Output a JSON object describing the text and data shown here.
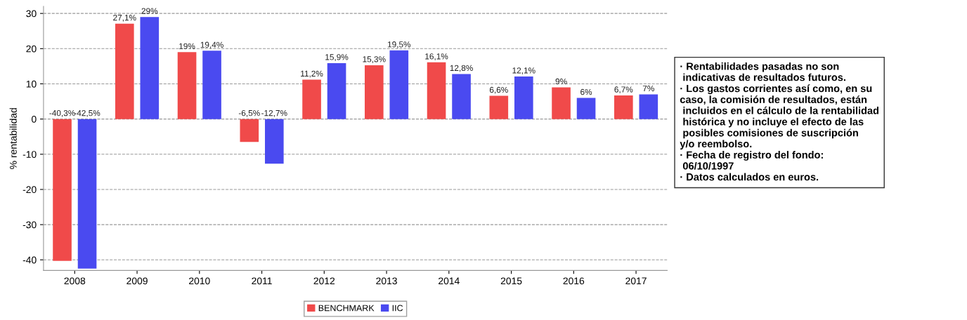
{
  "chart_data": {
    "type": "bar",
    "ylabel": "% rentabilidad",
    "categories": [
      "2008",
      "2009",
      "2010",
      "2011",
      "2012",
      "2013",
      "2014",
      "2015",
      "2016",
      "2017"
    ],
    "series": [
      {
        "name": "BENCHMARK",
        "color": "#f04a4a",
        "values": [
          -40.3,
          27.1,
          19,
          -6.5,
          11.2,
          15.3,
          16.1,
          6.6,
          9,
          6.7
        ],
        "value_labels": [
          "-40,3%",
          "27,1%",
          "19%",
          "-6,5%",
          "11,2%",
          "15,3%",
          "16,1%",
          "6,6%",
          "9%",
          "6,7%"
        ]
      },
      {
        "name": "IIC",
        "color": "#4a4af0",
        "values": [
          -42.5,
          29,
          19.4,
          -12.7,
          15.9,
          19.5,
          12.8,
          12.1,
          6,
          7
        ],
        "value_labels": [
          "-42,5%",
          "29%",
          "19,4%",
          "-12,7%",
          "15,9%",
          "19,5%",
          "12,8%",
          "12,1%",
          "6%",
          "7%"
        ]
      }
    ],
    "ylim": [
      -43,
      32
    ],
    "yticks": [
      -40,
      -30,
      -20,
      -10,
      0,
      10,
      20,
      30
    ],
    "grid": "y",
    "legend": "bottom",
    "annotations": [
      "· Rentabilidades pasadas no son\n indicativas de resultados futuros.\n· Los gastos corrientes así como, en su\ncaso, la comisión de resultados, están\n incluidos en el cálculo de la rentabilidad\n histórica y no incluye el efecto de las\n posibles comisiones de suscripción\ny/o reembolso.\n· Fecha de registro del fondo:\n 06/10/1997\n· Datos calculados en euros."
    ]
  }
}
